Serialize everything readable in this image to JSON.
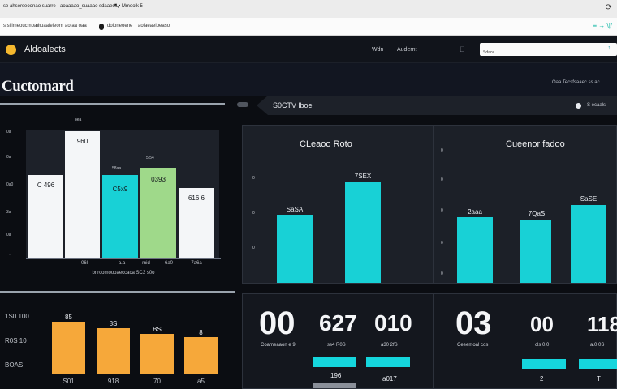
{
  "browser": {
    "url_text": "se ahsorseoonao suarre - aoaaaao_suaaao sdaaecs • Mmoolk 5",
    "bookmarks": [
      "s sllimeoucmoam",
      "si uaaleleom",
      "ao aa oaa",
      "doloneoene",
      "aolaeaeloeaso"
    ],
    "extension_text": "≡ → \\|/"
  },
  "header": {
    "brand": "Aldoalects",
    "nav": [
      "Wdn",
      "Audernt"
    ],
    "search": {
      "value": "Sdace",
      "placeholder": ""
    }
  },
  "page": {
    "title": "Cuctomard",
    "filters_label": "Oaa Tecsfsaaec ss ac"
  },
  "tabs": {
    "active_label": "S0CTV lboe",
    "legend_label": "S ecaals"
  },
  "colors": {
    "accent_cyan": "#18d1d6",
    "bar_white": "#f4f6f8",
    "bar_green": "#9fd98a",
    "bar_orange": "#f6a83a",
    "panel_bg": "#1a1d25"
  },
  "panels": {
    "left_top": {
      "y_ticks": [
        "0a",
        "0a",
        "0a0",
        "3a",
        "0a"
      ],
      "bars": [
        {
          "label": "C 496",
          "color": "white",
          "level": 0.53
        },
        {
          "label": "960",
          "color": "white",
          "level": 1.0
        },
        {
          "label": "C5x9",
          "color": "cyan",
          "level": 0.53
        },
        {
          "label": "0393",
          "color": "green",
          "level": 0.57
        },
        {
          "label": "616 6",
          "color": "white",
          "level": 0.44
        }
      ],
      "top_label": "8ea",
      "cyan_top_label": "58aa",
      "green_top_label": "5.54",
      "categories": [
        "06l",
        "a.a",
        "mid",
        "6a0",
        "7a6a"
      ],
      "footer": "bnrcomoooaeccaca SC3 s0o"
    },
    "center": {
      "title": "CLeaoo Roto",
      "y_ticks": [
        "0",
        "0",
        "0",
        "0"
      ],
      "bars": [
        {
          "label": "SaSA",
          "level": 0.52
        },
        {
          "label": "7SEX",
          "level": 0.73
        }
      ]
    },
    "right_top": {
      "title": "Cueenor fadoo",
      "y_ticks": [
        "0",
        "0",
        "0",
        "0",
        "0"
      ],
      "bars": [
        {
          "label": "2aaa",
          "level": 0.54
        },
        {
          "label": "7QaS",
          "level": 0.52
        },
        {
          "label": "SaSE",
          "level": 0.64
        }
      ]
    },
    "left_bottom": {
      "y_ticks": [
        "1S0.100",
        "R0S 10",
        "BOAS"
      ],
      "bars": [
        {
          "label": "85",
          "level": 0.9
        },
        {
          "label": "8S",
          "level": 0.75
        },
        {
          "label": "BS",
          "level": 0.64
        },
        {
          "label": "8",
          "level": 0.6
        }
      ],
      "categories": [
        "S01",
        "918",
        "70",
        "a5"
      ]
    },
    "kpi_center": {
      "values": [
        {
          "big": "00",
          "sub": "Coameaaon e 9"
        },
        {
          "big": "627",
          "sub": "ss4 R0S"
        },
        {
          "big": "010",
          "sub": "a30 2fS"
        }
      ],
      "pill_labels": [
        "196",
        "a017"
      ]
    },
    "kpi_right": {
      "values": [
        {
          "big": "03",
          "sub": "Ceeemoal cos"
        },
        {
          "big": "00",
          "sub": "cls 0.0"
        },
        {
          "big": "118",
          "sub": "a.0 0S"
        }
      ],
      "pill_labels": [
        "2",
        "T"
      ]
    }
  }
}
